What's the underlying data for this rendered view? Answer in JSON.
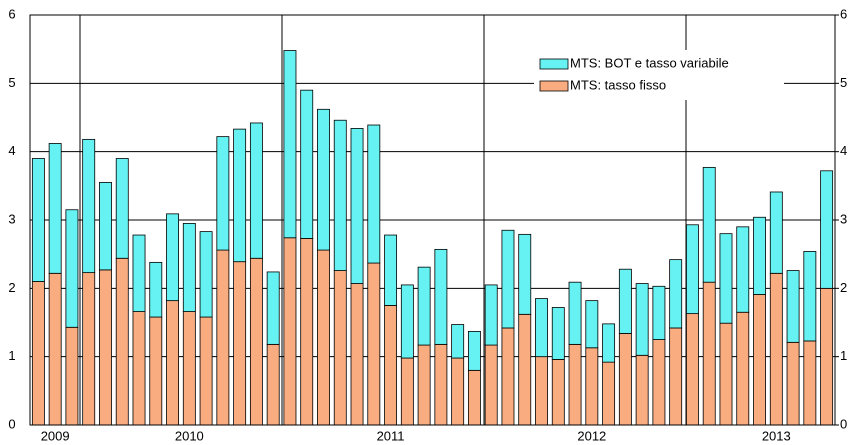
{
  "chart_data": {
    "type": "stacked-bar",
    "categories": [
      null,
      "2009",
      null,
      null,
      null,
      null,
      null,
      null,
      null,
      "2010",
      null,
      null,
      null,
      null,
      null,
      null,
      null,
      null,
      null,
      null,
      null,
      "2011",
      null,
      null,
      null,
      null,
      null,
      null,
      null,
      null,
      null,
      null,
      null,
      "2012",
      null,
      null,
      null,
      null,
      null,
      null,
      null,
      null,
      null,
      null,
      "2013",
      null,
      null,
      null
    ],
    "series": [
      {
        "name": "MTS: tasso fisso",
        "color": "#f9ac7f",
        "values": [
          2.1,
          2.22,
          1.43,
          2.23,
          2.27,
          2.44,
          1.66,
          1.58,
          1.82,
          1.66,
          1.58,
          2.56,
          2.39,
          2.44,
          1.18,
          2.74,
          2.73,
          2.56,
          2.26,
          2.07,
          2.37,
          1.75,
          0.98,
          1.17,
          1.18,
          0.98,
          0.8,
          1.17,
          1.42,
          1.62,
          1.0,
          0.96,
          1.18,
          1.13,
          0.92,
          1.34,
          1.02,
          1.25,
          1.42,
          1.63,
          2.09,
          1.49,
          1.65,
          1.91,
          2.22,
          1.21,
          1.23,
          2.0
        ]
      },
      {
        "name": "MTS: BOT e tasso variabile",
        "color": "#66f2f2",
        "values": [
          1.8,
          1.9,
          1.72,
          1.95,
          1.28,
          1.46,
          1.12,
          0.8,
          1.27,
          1.29,
          1.25,
          1.66,
          1.94,
          1.98,
          1.06,
          2.74,
          2.17,
          2.06,
          2.2,
          2.27,
          2.02,
          1.03,
          1.07,
          1.14,
          1.39,
          0.49,
          0.57,
          0.88,
          1.43,
          1.17,
          0.85,
          0.76,
          0.91,
          0.69,
          0.56,
          0.94,
          1.05,
          0.78,
          1.0,
          1.3,
          1.68,
          1.31,
          1.25,
          1.13,
          1.19,
          1.05,
          1.31,
          1.72
        ]
      }
    ],
    "ylim": [
      0,
      6
    ],
    "yticks": [
      0,
      1,
      2,
      3,
      4,
      5,
      6
    ],
    "y2lim": [
      0,
      6
    ],
    "y2ticks": [
      0,
      1,
      2,
      3,
      4,
      5,
      6
    ],
    "grid": true,
    "legend": "upper-right"
  }
}
